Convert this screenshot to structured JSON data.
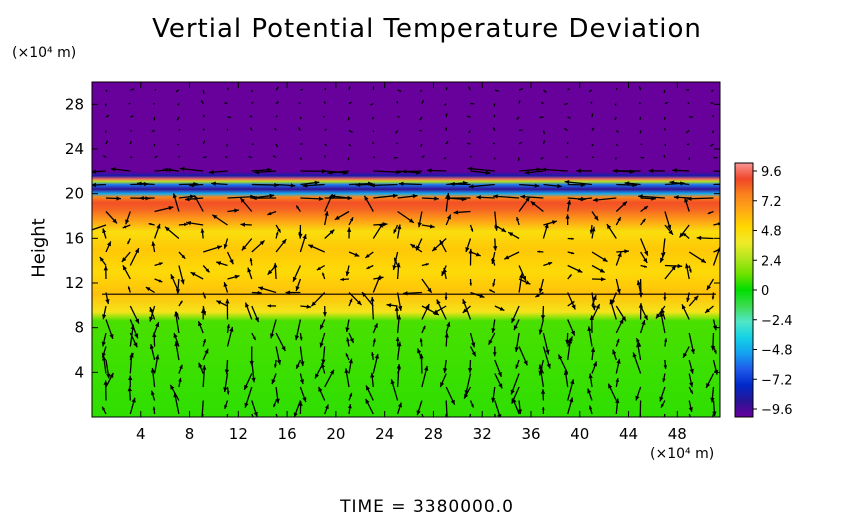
{
  "chart_data": {
    "type": "heatmap",
    "title": "Vertial Potential Temperature Deviation",
    "ylabel": "Height",
    "x_unit": "(×10⁴ m)",
    "y_unit": "(×10⁴ m)",
    "footer": "TIME  =  3380000.0",
    "xlim": [
      0,
      51.5
    ],
    "ylim": [
      0,
      30
    ],
    "x_ticks": [
      4,
      8,
      12,
      16,
      20,
      24,
      28,
      32,
      36,
      40,
      44,
      48
    ],
    "y_ticks": [
      4,
      8,
      12,
      16,
      20,
      24,
      28
    ],
    "colorbar": {
      "ticks": [
        "9.6",
        "7.2",
        "4.8",
        "2.4",
        "0",
        "−2.4",
        "−4.8",
        "−7.2",
        "−9.6"
      ],
      "range": [
        -9.6,
        9.6
      ]
    },
    "field_profile": [
      {
        "height": 0,
        "value": 0.5
      },
      {
        "height": 8.6,
        "value": 0.8
      },
      {
        "height": 9.4,
        "value": 4.0
      },
      {
        "height": 11,
        "value": 5.4
      },
      {
        "height": 13,
        "value": 4.6
      },
      {
        "height": 15,
        "value": 5.2
      },
      {
        "height": 16.6,
        "value": 4.4
      },
      {
        "height": 17.6,
        "value": 6.3
      },
      {
        "height": 18.6,
        "value": 7.8
      },
      {
        "height": 19.2,
        "value": 8.2
      },
      {
        "height": 19.7,
        "value": 7.0
      },
      {
        "height": 20.0,
        "value": -4.5
      },
      {
        "height": 20.4,
        "value": -8.6
      },
      {
        "height": 20.8,
        "value": -5.5
      },
      {
        "height": 21.1,
        "value": 2.5
      },
      {
        "height": 21.3,
        "value": 9.0
      },
      {
        "height": 21.6,
        "value": -8.0
      },
      {
        "height": 22.0,
        "value": -9.6
      },
      {
        "height": 30,
        "value": -9.6
      }
    ],
    "wind_vectors": "unlabeled arrow field overlaid on the temperature deviation"
  }
}
